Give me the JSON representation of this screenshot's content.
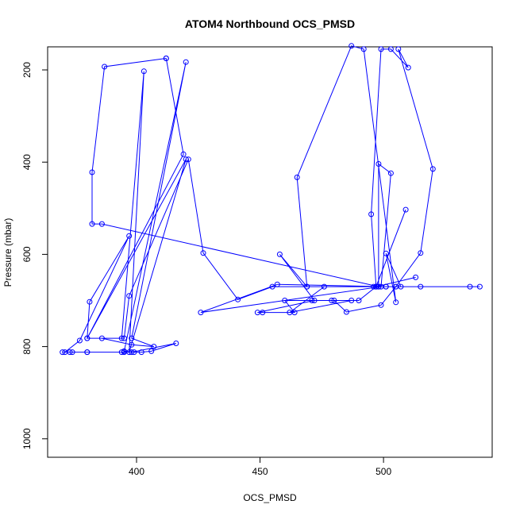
{
  "chart_data": {
    "type": "line",
    "title": "ATOM4 Northbound OCS_PMSD",
    "xlabel": "OCS_PMSD",
    "ylabel": "Pressure (mbar)",
    "xlim": [
      364,
      544
    ],
    "ylim": [
      1040,
      150
    ],
    "y_reversed": true,
    "x_ticks": [
      400,
      450,
      500
    ],
    "y_ticks": [
      200,
      400,
      600,
      800,
      1000
    ],
    "color": "#0000ff",
    "grid": false,
    "series": [
      {
        "points": [
          [
            412,
            175
          ],
          [
            387,
            193
          ],
          [
            382,
            422
          ],
          [
            382,
            534
          ],
          [
            386,
            534
          ],
          [
            498,
            670
          ],
          [
            539,
            670
          ],
          [
            535,
            670
          ],
          [
            501,
            670
          ],
          [
            515,
            670
          ],
          [
            505,
            670
          ],
          [
            497,
            670
          ],
          [
            513,
            650
          ],
          [
            497,
            670
          ],
          [
            490,
            700
          ],
          [
            479,
            700
          ],
          [
            471,
            700
          ],
          [
            480,
            700
          ],
          [
            485,
            725
          ],
          [
            499,
            710
          ],
          [
            505,
            670
          ],
          [
            515,
            597
          ],
          [
            520,
            415
          ],
          [
            506,
            155
          ],
          [
            510,
            195
          ],
          [
            503,
            155
          ],
          [
            499,
            155
          ],
          [
            495,
            513
          ],
          [
            497,
            670
          ],
          [
            509,
            503
          ],
          [
            497,
            670
          ],
          [
            501,
            670
          ],
          [
            457,
            665
          ],
          [
            426,
            726
          ],
          [
            499,
            670
          ],
          [
            503,
            424
          ],
          [
            498,
            404
          ],
          [
            498,
            670
          ],
          [
            496,
            670
          ],
          [
            469,
            670
          ],
          [
            458,
            600
          ],
          [
            472,
            700
          ],
          [
            449,
            726
          ],
          [
            451,
            726
          ],
          [
            464,
            726
          ],
          [
            460,
            700
          ],
          [
            487,
            700
          ],
          [
            462,
            726
          ],
          [
            476,
            670
          ],
          [
            507,
            670
          ],
          [
            501,
            598
          ],
          [
            505,
            704
          ],
          [
            492,
            155
          ],
          [
            487,
            148
          ],
          [
            465,
            433
          ],
          [
            469,
            670
          ],
          [
            455,
            670
          ],
          [
            441,
            698
          ],
          [
            427,
            597
          ],
          [
            421,
            394
          ],
          [
            397,
            690
          ],
          [
            395,
            782
          ],
          [
            386,
            782
          ],
          [
            398,
            796
          ],
          [
            407,
            800
          ],
          [
            398,
            782
          ],
          [
            420,
            183
          ],
          [
            395,
            810
          ],
          [
            399,
            812
          ],
          [
            402,
            812
          ],
          [
            406,
            810
          ],
          [
            416,
            793
          ],
          [
            398,
            812
          ],
          [
            394,
            812
          ],
          [
            380,
            812
          ],
          [
            374,
            812
          ],
          [
            373,
            812
          ],
          [
            370,
            812
          ],
          [
            380,
            812
          ],
          [
            395,
            812
          ],
          [
            371,
            812
          ],
          [
            377,
            787
          ],
          [
            397,
            560
          ],
          [
            381,
            703
          ],
          [
            380,
            782
          ],
          [
            420,
            394
          ],
          [
            397,
            812
          ],
          [
            403,
            203
          ],
          [
            394,
            782
          ],
          [
            380,
            782
          ],
          [
            419,
            383
          ],
          [
            412,
            175
          ]
        ]
      }
    ]
  }
}
